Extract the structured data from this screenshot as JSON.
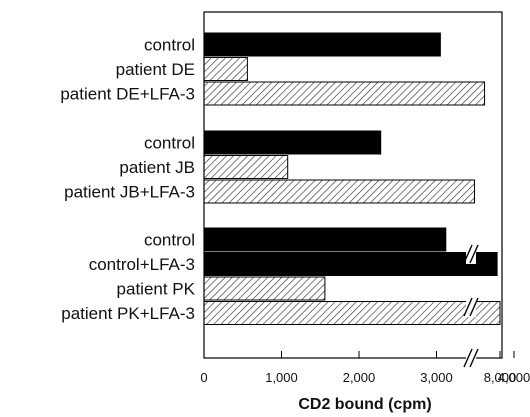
{
  "chart_data": {
    "type": "bar",
    "orientation": "horizontal",
    "xlabel": "CD2 bound (cpm)",
    "x_ticks": [
      {
        "value": 0,
        "label": "0"
      },
      {
        "value": 1000,
        "label": "1,000"
      },
      {
        "value": 2000,
        "label": "2,000"
      },
      {
        "value": 3000,
        "label": "3,000"
      },
      {
        "value": 4000,
        "label": "4,000"
      },
      {
        "value": 8000,
        "label": "8,000"
      }
    ],
    "axis_break": {
      "after": 4000,
      "before": 8000
    },
    "groups": [
      {
        "bars": [
          {
            "label": "control",
            "value": 3050,
            "style": "solid"
          },
          {
            "label": "patient DE",
            "value": 560,
            "style": "hatched"
          },
          {
            "label": "patient DE+LFA-3",
            "value": 3620,
            "style": "hatched"
          }
        ]
      },
      {
        "bars": [
          {
            "label": "control",
            "value": 2280,
            "style": "solid"
          },
          {
            "label": "patient JB",
            "value": 1080,
            "style": "hatched"
          },
          {
            "label": "patient JB+LFA-3",
            "value": 3490,
            "style": "hatched"
          }
        ]
      },
      {
        "bars": [
          {
            "label": "control",
            "value": 3120,
            "style": "solid"
          },
          {
            "label": "control+LFA-3",
            "value": 7600,
            "style": "solid"
          },
          {
            "label": "patient PK",
            "value": 1560,
            "style": "hatched"
          },
          {
            "label": "patient PK+LFA-3",
            "value": 8000,
            "style": "hatched"
          }
        ]
      }
    ],
    "colors": {
      "solid": "#000000",
      "hatch_line": "#333333",
      "hatch_bg": "#ffffff",
      "frame": "#000000"
    },
    "grid": false,
    "legend": "none"
  }
}
